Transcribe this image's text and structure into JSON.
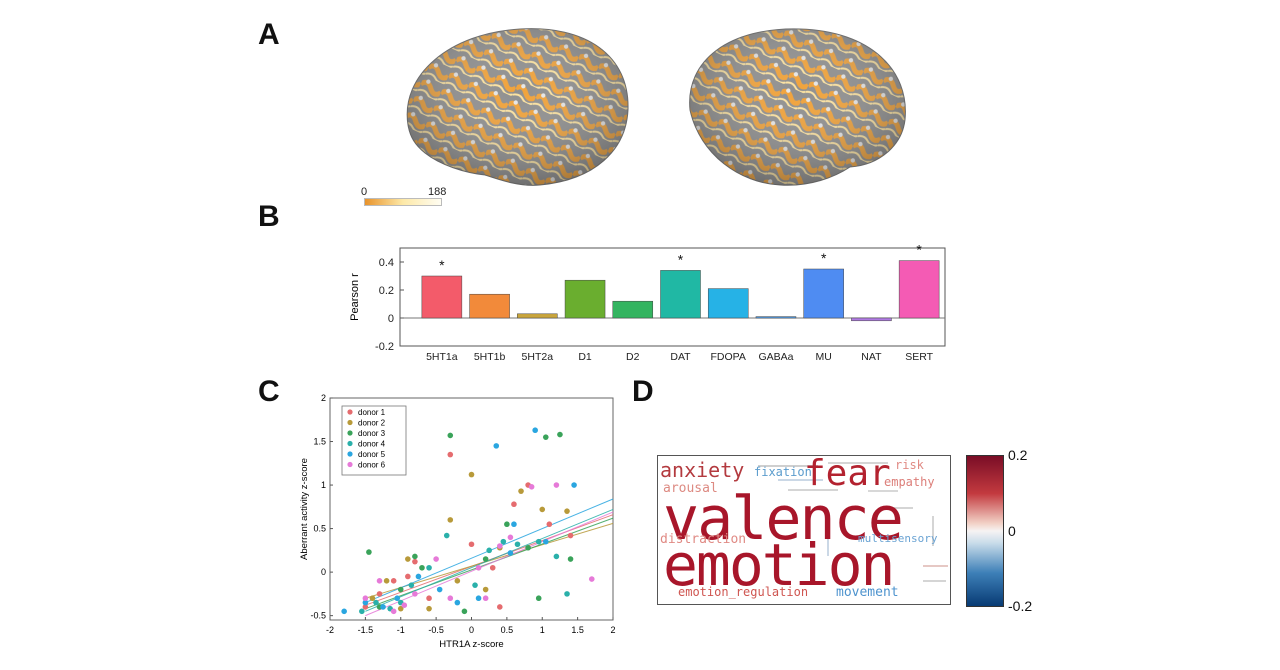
{
  "panels": {
    "a": "A",
    "b": "B",
    "c": "C",
    "d": "D"
  },
  "panel_a": {
    "scale_min": "0",
    "scale_max": "188"
  },
  "chart_data": [
    {
      "type": "bar",
      "ylabel": "Pearson r",
      "ylim": [
        -0.2,
        0.5
      ],
      "yticks": [
        "0.4",
        "0.2",
        "0",
        "-0.2"
      ],
      "categories": [
        "5HT1a",
        "5HT1b",
        "5HT2a",
        "D1",
        "D2",
        "DAT",
        "FDOPA",
        "GABAa",
        "MU",
        "NAT",
        "SERT"
      ],
      "values": [
        0.3,
        0.17,
        0.03,
        0.27,
        0.12,
        0.34,
        0.21,
        0.01,
        0.35,
        -0.02,
        0.41
      ],
      "significant": [
        "*",
        "",
        "",
        "",
        "",
        "*",
        "",
        "",
        "*",
        "",
        "*"
      ],
      "colors": [
        "#f35b6a",
        "#f28a3a",
        "#c9a53c",
        "#6aae2f",
        "#33b460",
        "#20b8a4",
        "#26b2e6",
        "#4f95d8",
        "#4f8cf2",
        "#b07ae3",
        "#f45bb4"
      ]
    },
    {
      "type": "scatter",
      "xlabel": "HTR1A z-score",
      "ylabel": "Aberrant activity z-score",
      "xlim": [
        -2,
        2
      ],
      "ylim": [
        -0.55,
        2
      ],
      "xticks": [
        "-2",
        "-1.5",
        "-1",
        "-0.5",
        "0",
        "0.5",
        "1",
        "1.5",
        "2"
      ],
      "yticks": [
        "2",
        "1.5",
        "1",
        "0.5",
        "0",
        "-0.5"
      ],
      "legend_placement": "top-left",
      "series": [
        {
          "name": "donor 1",
          "color": "#e56c6f",
          "fit": [
            [
              -1.5,
              -0.38
            ],
            [
              2,
              0.66
            ]
          ],
          "points": [
            [
              -1.5,
              -0.4
            ],
            [
              -1.3,
              -0.25
            ],
            [
              -1.1,
              -0.1
            ],
            [
              -0.9,
              -0.05
            ],
            [
              -0.6,
              -0.3
            ],
            [
              -0.3,
              1.35
            ],
            [
              0.0,
              0.32
            ],
            [
              0.3,
              0.05
            ],
            [
              0.6,
              0.78
            ],
            [
              0.8,
              1.0
            ],
            [
              1.1,
              0.55
            ],
            [
              1.4,
              0.42
            ],
            [
              -0.8,
              0.12
            ],
            [
              0.4,
              -0.4
            ]
          ]
        },
        {
          "name": "donor 2",
          "color": "#b89a3a",
          "fit": [
            [
              -1.5,
              -0.3
            ],
            [
              2,
              0.56
            ]
          ],
          "points": [
            [
              -1.4,
              -0.3
            ],
            [
              -1.2,
              -0.1
            ],
            [
              -0.9,
              0.15
            ],
            [
              -0.3,
              0.6
            ],
            [
              -0.2,
              -0.1
            ],
            [
              0.0,
              1.12
            ],
            [
              0.4,
              0.28
            ],
            [
              0.7,
              0.93
            ],
            [
              1.0,
              0.72
            ],
            [
              1.35,
              0.7
            ],
            [
              -0.6,
              -0.42
            ],
            [
              0.2,
              -0.2
            ],
            [
              -1.0,
              -0.42
            ]
          ]
        },
        {
          "name": "donor 3",
          "color": "#3aa35a",
          "fit": [
            [
              -1.5,
              -0.42
            ],
            [
              2,
              0.62
            ]
          ],
          "points": [
            [
              -1.45,
              0.23
            ],
            [
              -1.3,
              -0.4
            ],
            [
              -1.0,
              -0.2
            ],
            [
              -0.7,
              0.05
            ],
            [
              -0.3,
              1.57
            ],
            [
              -0.1,
              -0.45
            ],
            [
              0.2,
              0.15
            ],
            [
              0.5,
              0.55
            ],
            [
              0.8,
              0.28
            ],
            [
              1.05,
              1.55
            ],
            [
              1.25,
              1.58
            ],
            [
              1.4,
              0.15
            ],
            [
              0.95,
              -0.3
            ],
            [
              -0.8,
              0.18
            ]
          ]
        },
        {
          "name": "donor 4",
          "color": "#2ab0aa",
          "fit": [
            [
              -1.5,
              -0.45
            ],
            [
              2,
              0.72
            ]
          ],
          "points": [
            [
              -1.55,
              -0.45
            ],
            [
              -1.35,
              -0.35
            ],
            [
              -1.15,
              -0.42
            ],
            [
              -0.85,
              -0.15
            ],
            [
              -0.6,
              0.05
            ],
            [
              -0.35,
              0.42
            ],
            [
              0.05,
              -0.15
            ],
            [
              0.45,
              0.35
            ],
            [
              0.65,
              0.32
            ],
            [
              0.95,
              0.35
            ],
            [
              1.2,
              0.18
            ],
            [
              1.35,
              -0.25
            ],
            [
              -1.0,
              -0.35
            ],
            [
              0.25,
              0.25
            ]
          ]
        },
        {
          "name": "donor 5",
          "color": "#2aa6e0",
          "fit": [
            [
              -1.5,
              -0.35
            ],
            [
              2,
              0.84
            ]
          ],
          "points": [
            [
              -1.8,
              -0.45
            ],
            [
              -1.5,
              -0.35
            ],
            [
              -1.25,
              -0.4
            ],
            [
              -1.05,
              -0.3
            ],
            [
              -0.75,
              -0.05
            ],
            [
              -0.45,
              -0.2
            ],
            [
              0.1,
              -0.3
            ],
            [
              0.35,
              1.45
            ],
            [
              0.6,
              0.55
            ],
            [
              0.9,
              1.63
            ],
            [
              1.05,
              0.35
            ],
            [
              1.45,
              1.0
            ],
            [
              -0.2,
              -0.35
            ],
            [
              0.55,
              0.22
            ]
          ]
        },
        {
          "name": "donor 6",
          "color": "#e67ad8",
          "fit": [
            [
              -1.5,
              -0.5
            ],
            [
              2,
              0.69
            ]
          ],
          "points": [
            [
              -1.5,
              -0.3
            ],
            [
              -1.3,
              -0.1
            ],
            [
              -1.1,
              -0.45
            ],
            [
              -0.8,
              -0.25
            ],
            [
              -0.5,
              0.15
            ],
            [
              -0.3,
              -0.3
            ],
            [
              0.2,
              -0.3
            ],
            [
              0.55,
              0.4
            ],
            [
              0.85,
              0.98
            ],
            [
              1.2,
              1.0
            ],
            [
              1.7,
              -0.08
            ],
            [
              0.4,
              0.3
            ],
            [
              -0.95,
              -0.38
            ],
            [
              0.1,
              0.05
            ]
          ]
        }
      ]
    }
  ],
  "panel_d": {
    "words": [
      {
        "text": "valence",
        "color": "#a8162a"
      },
      {
        "text": "emotion",
        "color": "#a8162a"
      },
      {
        "text": "fear",
        "color": "#b3222f"
      },
      {
        "text": "anxiety",
        "color": "#b33a3f"
      },
      {
        "text": "fixation",
        "color": "#5b9ccd"
      },
      {
        "text": "risk",
        "color": "#e08a84"
      },
      {
        "text": "empathy",
        "color": "#dc7e79"
      },
      {
        "text": "arousal",
        "color": "#dd8a82"
      },
      {
        "text": "distraction",
        "color": "#e08a84"
      },
      {
        "text": "multisensory",
        "color": "#6aa3d3"
      },
      {
        "text": "emotion_regulation",
        "color": "#cf5550"
      },
      {
        "text": "movement",
        "color": "#4d93ce"
      }
    ],
    "colorbar": {
      "max_label": "0.2",
      "mid_label": "0",
      "min_label": "-0.2"
    }
  }
}
